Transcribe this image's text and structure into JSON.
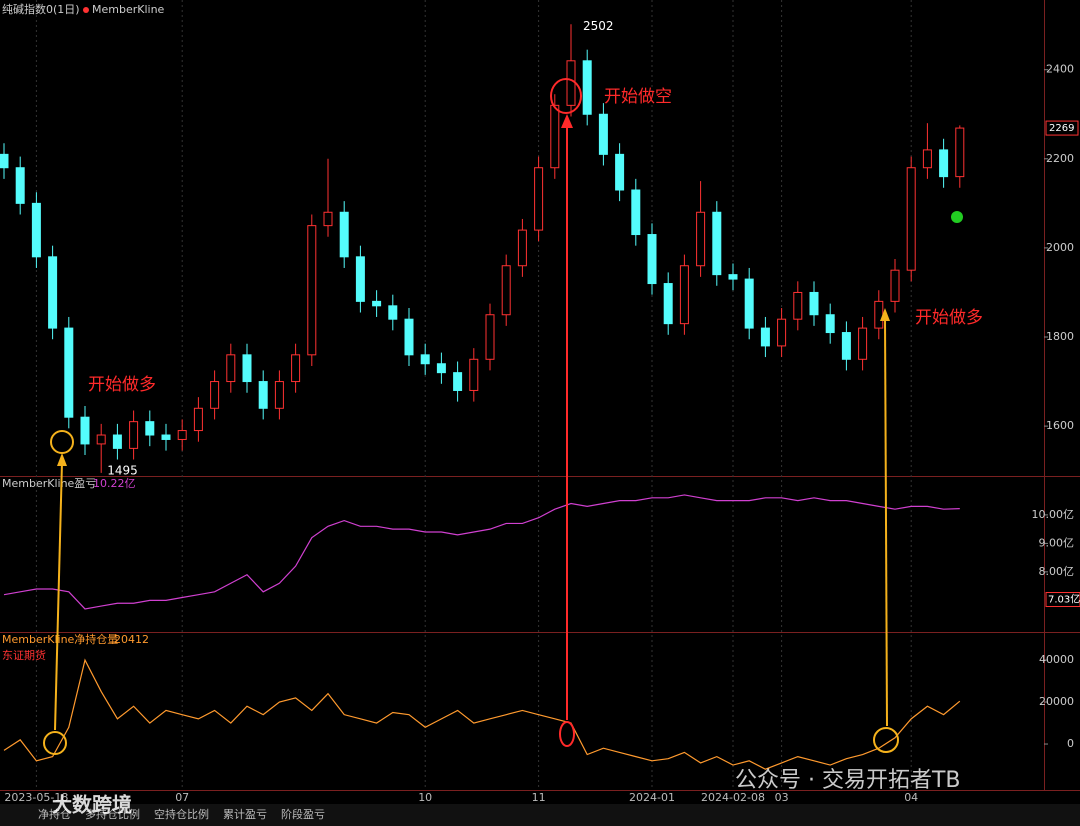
{
  "chart_data": [
    {
      "type": "candlestick",
      "title": "纯碱指数0(1日)",
      "legend": "MemberKline",
      "up_color": "#ff3232",
      "down_color": "#54fcfc",
      "ylim": [
        1488,
        2552
      ],
      "yticks": [
        1600,
        1800,
        2000,
        2200,
        2400
      ],
      "open": [
        2210,
        2180,
        2100,
        1980,
        1820,
        1620,
        1560,
        1580,
        1550,
        1610,
        1580,
        1570,
        1590,
        1640,
        1700,
        1760,
        1700,
        1640,
        1700,
        1760,
        2050,
        2080,
        1980,
        1880,
        1870,
        1840,
        1760,
        1740,
        1720,
        1680,
        1750,
        1850,
        1960,
        2040,
        2180,
        2320,
        2420,
        2300,
        2210,
        2130,
        2030,
        1920,
        1830,
        1960,
        2080,
        1940,
        1930,
        1820,
        1780,
        1840,
        1900,
        1850,
        1810,
        1750,
        1820,
        1880,
        1950,
        2180,
        2220,
        2160
      ],
      "high": [
        2235,
        2205,
        2125,
        2005,
        1845,
        1645,
        1605,
        1605,
        1635,
        1635,
        1605,
        1615,
        1665,
        1725,
        1785,
        1785,
        1725,
        1725,
        1785,
        2075,
        2200,
        2105,
        2005,
        1905,
        1895,
        1865,
        1785,
        1765,
        1745,
        1775,
        1875,
        1985,
        2065,
        2205,
        2345,
        2502,
        2445,
        2325,
        2235,
        2155,
        2055,
        1945,
        1985,
        2150,
        2105,
        1965,
        1955,
        1845,
        1865,
        1925,
        1925,
        1875,
        1835,
        1845,
        1905,
        1975,
        2205,
        2280,
        2245,
        2275
      ],
      "low": [
        2155,
        2075,
        1955,
        1795,
        1595,
        1535,
        1495,
        1525,
        1525,
        1555,
        1545,
        1545,
        1565,
        1615,
        1675,
        1675,
        1615,
        1615,
        1675,
        1735,
        2025,
        1955,
        1855,
        1845,
        1815,
        1735,
        1715,
        1695,
        1655,
        1655,
        1725,
        1825,
        1935,
        2015,
        2155,
        2295,
        2275,
        2185,
        2105,
        2005,
        1895,
        1805,
        1805,
        1935,
        1915,
        1905,
        1795,
        1755,
        1755,
        1815,
        1825,
        1785,
        1725,
        1725,
        1795,
        1855,
        1925,
        2155,
        2135,
        2135
      ],
      "close": [
        2180,
        2100,
        1980,
        1820,
        1620,
        1560,
        1580,
        1550,
        1610,
        1580,
        1570,
        1590,
        1640,
        1700,
        1760,
        1700,
        1640,
        1700,
        1760,
        2050,
        2080,
        1980,
        1880,
        1870,
        1840,
        1760,
        1740,
        1720,
        1680,
        1750,
        1850,
        1960,
        2040,
        2180,
        2320,
        2420,
        2300,
        2210,
        2130,
        2030,
        1920,
        1830,
        1960,
        2080,
        1940,
        1930,
        1820,
        1780,
        1840,
        1900,
        1850,
        1810,
        1750,
        1820,
        1880,
        1950,
        2180,
        2220,
        2160,
        2269
      ]
    },
    {
      "type": "line",
      "title": "MemberKline盈亏",
      "value_label": "10.22亿",
      "color": "#d040d0",
      "ylim": [
        5.89,
        11.33
      ],
      "yticks": [
        {
          "value": 10,
          "label": "10.00亿"
        },
        {
          "value": 9,
          "label": "9.00亿"
        },
        {
          "value": 8,
          "label": "8.00亿"
        }
      ],
      "marker": {
        "value": 7.03,
        "label": "7.03亿"
      },
      "values": [
        7.2,
        7.3,
        7.4,
        7.4,
        7.3,
        6.7,
        6.8,
        6.9,
        6.9,
        7.0,
        7.0,
        7.1,
        7.2,
        7.3,
        7.6,
        7.9,
        7.3,
        7.6,
        8.2,
        9.2,
        9.6,
        9.8,
        9.6,
        9.6,
        9.5,
        9.5,
        9.4,
        9.4,
        9.3,
        9.4,
        9.5,
        9.7,
        9.7,
        9.9,
        10.2,
        10.4,
        10.3,
        10.4,
        10.5,
        10.5,
        10.6,
        10.6,
        10.7,
        10.6,
        10.5,
        10.5,
        10.5,
        10.6,
        10.6,
        10.5,
        10.6,
        10.5,
        10.5,
        10.4,
        10.3,
        10.2,
        10.3,
        10.3,
        10.2,
        10.22
      ]
    },
    {
      "type": "line",
      "title": "MemberKline净持仓量",
      "subtitle": "东证期货",
      "color": "#ff9a2e",
      "ylim": [
        -21900,
        52900
      ],
      "yticks": [
        0,
        20000,
        40000
      ],
      "values": [
        -3000,
        2000,
        -8000,
        -6000,
        8000,
        40000,
        25000,
        12000,
        18000,
        10000,
        16000,
        14000,
        12000,
        16000,
        10000,
        18000,
        14000,
        20000,
        22000,
        16000,
        24000,
        14000,
        12000,
        10000,
        15000,
        14000,
        8000,
        12000,
        16000,
        10000,
        12000,
        14000,
        16000,
        14000,
        12000,
        10000,
        -5000,
        -2000,
        -4000,
        -6000,
        -8000,
        -7000,
        -4000,
        -9000,
        -6000,
        -10000,
        -8000,
        -12000,
        -9000,
        -6000,
        -8000,
        -10000,
        -7000,
        -5000,
        -2000,
        3000,
        12000,
        18000,
        14000,
        20412
      ]
    }
  ],
  "x_axis": [
    {
      "index": 2,
      "label": "2023-05-18"
    },
    {
      "index": 11,
      "label": "07"
    },
    {
      "index": 26,
      "label": "10"
    },
    {
      "index": 33,
      "label": "11"
    },
    {
      "index": 40,
      "label": "2024-01"
    },
    {
      "index": 45,
      "label": "2024-02-08"
    },
    {
      "index": 48,
      "label": "03"
    },
    {
      "index": 56,
      "label": "04"
    }
  ],
  "annotations": {
    "long1": "开始做多",
    "short": "开始做空",
    "long2": "开始做多"
  },
  "tabs": [
    "净持仓",
    "多持仓比例",
    "空持仓比例",
    "累计盈亏",
    "阶段盈亏"
  ],
  "watermarks": {
    "left": "大数跨境",
    "right": "公众号 · 交易开拓者TB"
  }
}
